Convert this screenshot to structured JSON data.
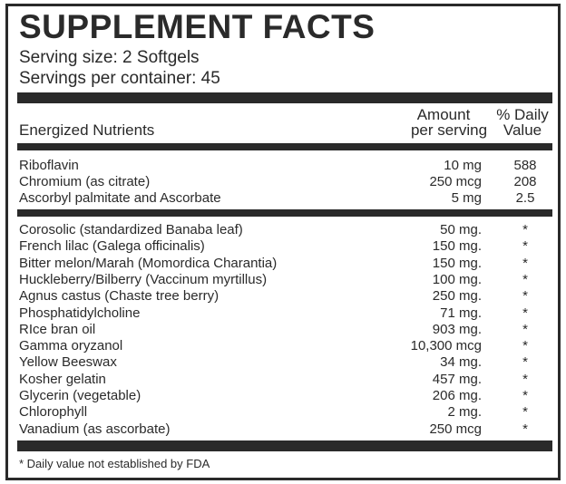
{
  "title": "SUPPLEMENT FACTS",
  "serving_size": "Serving size: 2 Softgels",
  "servings_per_container": "Servings per container: 45",
  "header": {
    "nutrients": "Energized Nutrients",
    "amount_line1": "Amount",
    "amount_line2": "per serving",
    "dv_line1": "% Daily",
    "dv_line2": "Value"
  },
  "group1": [
    {
      "name": "Riboflavin",
      "amount": "10 mg",
      "dv": "588"
    },
    {
      "name": "Chromium (as citrate)",
      "amount": "250 mcg",
      "dv": "208"
    },
    {
      "name": "Ascorbyl palmitate and Ascorbate",
      "amount": "5 mg",
      "dv": "2.5"
    }
  ],
  "group2": [
    {
      "name": "Corosolic (standardized Banaba leaf)",
      "amount": "50 mg.",
      "dv": "*"
    },
    {
      "name": "French lilac (Galega officinalis)",
      "amount": "150 mg.",
      "dv": "*"
    },
    {
      "name": "Bitter melon/Marah (Momordica Charantia)",
      "amount": "150 mg.",
      "dv": "*"
    },
    {
      "name": "Huckleberry/Bilberry (Vaccinum myrtillus)",
      "amount": "100 mg.",
      "dv": "*"
    },
    {
      "name": "Agnus castus (Chaste tree berry)",
      "amount": "250 mg.",
      "dv": "*"
    },
    {
      "name": "Phosphatidylcholine",
      "amount": "71 mg.",
      "dv": "*"
    },
    {
      "name": "RIce bran oil",
      "amount": "903 mg.",
      "dv": "*"
    },
    {
      "name": "Gamma oryzanol",
      "amount": "10,300 mcg",
      "dv": "*"
    },
    {
      "name": "Yellow Beeswax",
      "amount": "34 mg.",
      "dv": "*"
    },
    {
      "name": "Kosher gelatin",
      "amount": "457 mg.",
      "dv": "*"
    },
    {
      "name": "Glycerin (vegetable)",
      "amount": "206 mg.",
      "dv": "*"
    },
    {
      "name": "Chlorophyll",
      "amount": "2 mg.",
      "dv": "*"
    },
    {
      "name": "Vanadium (as ascorbate)",
      "amount": "250 mcg",
      "dv": "*"
    }
  ],
  "footnote": "* Daily value not established by FDA"
}
